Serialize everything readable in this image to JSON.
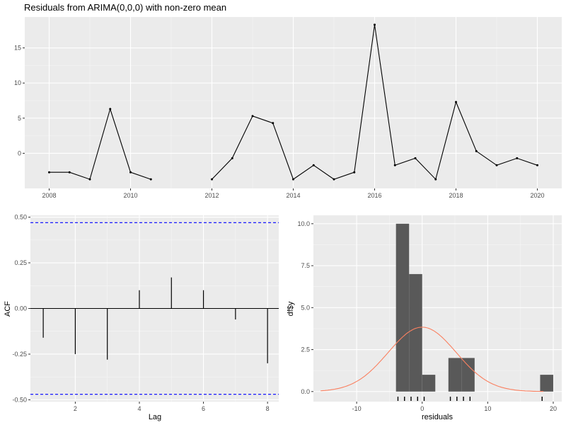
{
  "chart_data": [
    {
      "type": "line",
      "title": "Residuals from ARIMA(0,0,0) with non-zero mean",
      "xlabel": "",
      "ylabel": "",
      "xlim": [
        2007.4,
        2020.6
      ],
      "ylim": [
        -5,
        19.4
      ],
      "x_ticks": [
        2008,
        2010,
        2012,
        2014,
        2016,
        2018,
        2020
      ],
      "y_ticks": [
        0,
        5,
        10,
        15
      ],
      "grid": true,
      "points": [
        {
          "x": 2008.0,
          "y": -2.7
        },
        {
          "x": 2008.5,
          "y": -2.7
        },
        {
          "x": 2009.0,
          "y": -3.7
        },
        {
          "x": 2009.5,
          "y": 6.3
        },
        {
          "x": 2010.0,
          "y": -2.7
        },
        {
          "x": 2010.5,
          "y": -3.7
        },
        {
          "x": 2012.0,
          "y": -3.7
        },
        {
          "x": 2012.5,
          "y": -0.7
        },
        {
          "x": 2013.0,
          "y": 5.3
        },
        {
          "x": 2013.5,
          "y": 4.3
        },
        {
          "x": 2014.0,
          "y": -3.7
        },
        {
          "x": 2014.5,
          "y": -1.7
        },
        {
          "x": 2015.0,
          "y": -3.7
        },
        {
          "x": 2015.5,
          "y": -2.7
        },
        {
          "x": 2016.0,
          "y": 18.3
        },
        {
          "x": 2016.5,
          "y": -1.7
        },
        {
          "x": 2017.0,
          "y": -0.7
        },
        {
          "x": 2017.5,
          "y": -3.7
        },
        {
          "x": 2018.0,
          "y": 7.3
        },
        {
          "x": 2018.5,
          "y": 0.3
        },
        {
          "x": 2019.0,
          "y": -1.7
        },
        {
          "x": 2019.5,
          "y": -0.7
        },
        {
          "x": 2020.0,
          "y": -1.7
        }
      ],
      "colors": {
        "line": "#000000"
      }
    },
    {
      "type": "bar",
      "title": "",
      "xlabel": "Lag",
      "ylabel": "ACF",
      "xlim": [
        0.6,
        8.35
      ],
      "ylim": [
        -0.51,
        0.51
      ],
      "x_ticks": [
        2,
        4,
        6,
        8
      ],
      "y_ticks": [
        -0.5,
        -0.25,
        0.0,
        0.25,
        0.5
      ],
      "y_tick_labels": [
        "-0.50",
        "-0.25",
        "0.00",
        "0.25",
        "0.50"
      ],
      "grid": true,
      "lags": [
        1,
        2,
        3,
        4,
        5,
        6,
        7,
        8
      ],
      "values": [
        -0.16,
        -0.25,
        -0.28,
        0.1,
        0.17,
        0.1,
        -0.06,
        -0.3
      ],
      "confidence_bounds": [
        0.47,
        -0.47
      ],
      "colors": {
        "bars": "#000000",
        "bounds": "#0000ff"
      }
    },
    {
      "type": "bar",
      "title": "",
      "xlabel": "residuals",
      "ylabel": "df$y",
      "xlim": [
        -16.6,
        21.3
      ],
      "ylim": [
        -0.6,
        10.5
      ],
      "x_ticks": [
        -10,
        0,
        10,
        20
      ],
      "y_ticks": [
        0,
        2.5,
        5,
        7.5,
        10
      ],
      "y_tick_labels": [
        "0.0",
        "2.5",
        "5.0",
        "7.5",
        "10.0"
      ],
      "grid": true,
      "bins": [
        {
          "from": -4,
          "to": -2,
          "count": 10
        },
        {
          "from": -2,
          "to": 0,
          "count": 7
        },
        {
          "from": 0,
          "to": 2,
          "count": 1
        },
        {
          "from": 4,
          "to": 6,
          "count": 2
        },
        {
          "from": 6,
          "to": 8,
          "count": 2
        },
        {
          "from": 18,
          "to": 20,
          "count": 1
        }
      ],
      "rug": [
        -3.7,
        -2.7,
        -1.7,
        -0.7,
        0.3,
        4.3,
        5.3,
        6.3,
        7.3,
        18.3
      ],
      "normal_curve": {
        "mean": 0,
        "sd": 5.2,
        "scale": 50
      },
      "colors": {
        "bars": "#595959",
        "curve": "#fa8060",
        "rug": "#000000"
      }
    }
  ]
}
